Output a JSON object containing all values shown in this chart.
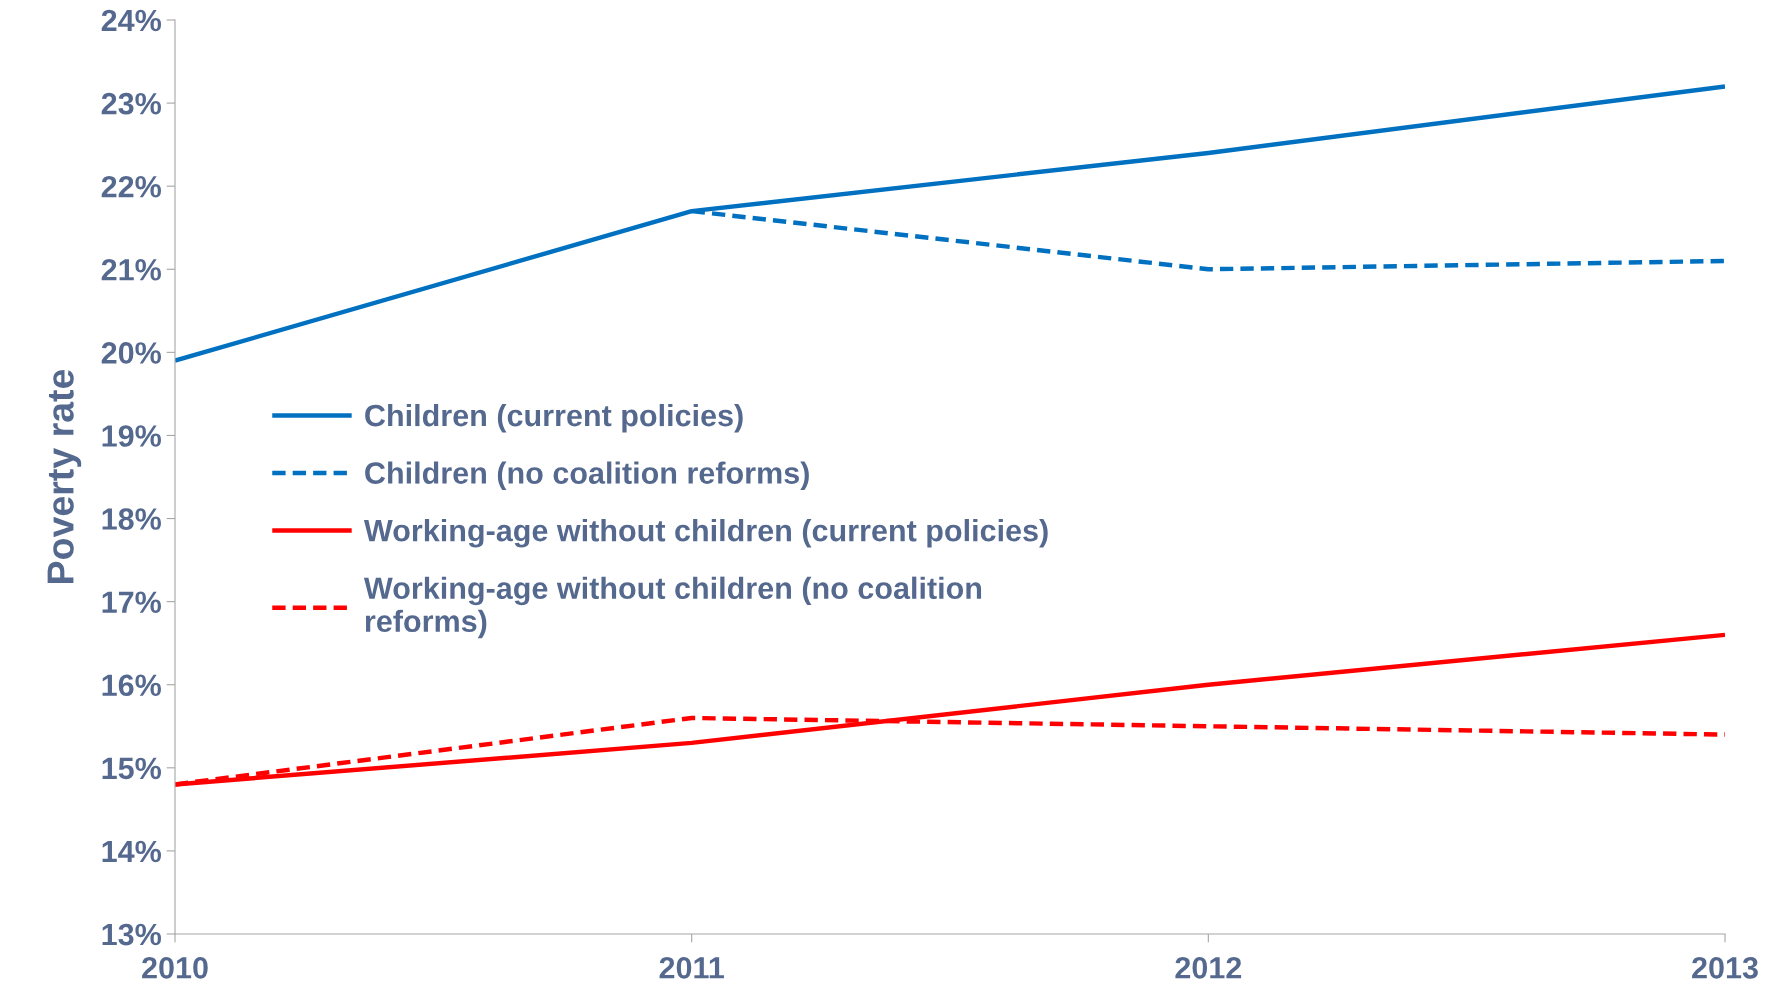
{
  "chart_data": {
    "type": "line",
    "ylabel": "Poverty rate",
    "x": [
      2010,
      2011,
      2012,
      2013
    ],
    "series": [
      {
        "name": "Children (current policies)",
        "color": "#0070c0",
        "line_style": "solid",
        "values": [
          19.9,
          21.7,
          22.4,
          23.2
        ]
      },
      {
        "name": "Children (no coalition reforms)",
        "color": "#0070c0",
        "line_style": "dashed",
        "x": [
          2011,
          2012,
          2013
        ],
        "values": [
          21.7,
          21.0,
          21.1
        ]
      },
      {
        "name": "Working-age without children (current policies)",
        "color": "#ff0000",
        "line_style": "solid",
        "values": [
          14.8,
          15.3,
          16.0,
          16.6
        ]
      },
      {
        "name": "Working-age without children (no coalition\nreforms)",
        "color": "#ff0000",
        "line_style": "dashed",
        "values": [
          14.8,
          15.6,
          15.5,
          15.4
        ]
      }
    ],
    "xlim": [
      2010,
      2013
    ],
    "xticks": [
      2010,
      2011,
      2012,
      2013
    ],
    "ylim": [
      13,
      24
    ],
    "yticks": [
      {
        "value": 13,
        "label": "13%"
      },
      {
        "value": 14,
        "label": "14%"
      },
      {
        "value": 15,
        "label": "15%"
      },
      {
        "value": 16,
        "label": "16%"
      },
      {
        "value": 17,
        "label": "17%"
      },
      {
        "value": 18,
        "label": "18%"
      },
      {
        "value": 19,
        "label": "19%"
      },
      {
        "value": 20,
        "label": "20%"
      },
      {
        "value": 21,
        "label": "21%"
      },
      {
        "value": 22,
        "label": "22%"
      },
      {
        "value": 23,
        "label": "23%"
      },
      {
        "value": 24,
        "label": "24%"
      }
    ],
    "grid": false,
    "legend": "left",
    "marker": "none"
  }
}
